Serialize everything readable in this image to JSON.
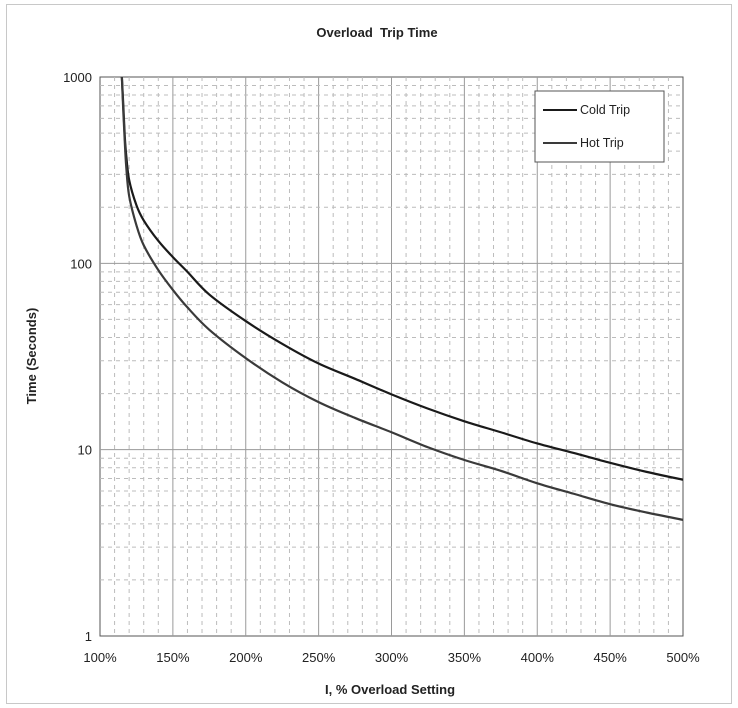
{
  "chart_data": {
    "type": "line",
    "title": "Overload  Trip Time",
    "xlabel": "I, % Overload Setting",
    "ylabel": "Time (Seconds)",
    "xlim": [
      100,
      500
    ],
    "ylim": [
      1,
      1000
    ],
    "y_scale": "log",
    "grid": true,
    "legend_position": "top-right",
    "x_ticks": [
      {
        "value": 100,
        "label": "100%"
      },
      {
        "value": 150,
        "label": "150%"
      },
      {
        "value": 200,
        "label": "200%"
      },
      {
        "value": 250,
        "label": "250%"
      },
      {
        "value": 300,
        "label": "300%"
      },
      {
        "value": 350,
        "label": "350%"
      },
      {
        "value": 400,
        "label": "400%"
      },
      {
        "value": 450,
        "label": "450%"
      },
      {
        "value": 500,
        "label": "500%"
      }
    ],
    "y_ticks": [
      {
        "value": 1,
        "label": "1"
      },
      {
        "value": 10,
        "label": "10"
      },
      {
        "value": 100,
        "label": "100"
      },
      {
        "value": 1000,
        "label": "1000"
      }
    ],
    "series": [
      {
        "name": "Cold Trip",
        "color": "#1a1a1a",
        "x": [
          115,
          116,
          117,
          118,
          120,
          125,
          130,
          140,
          150,
          160,
          175,
          200,
          225,
          250,
          275,
          300,
          325,
          350,
          375,
          400,
          425,
          450,
          475,
          500
        ],
        "y": [
          1000,
          700,
          480,
          380,
          280,
          205,
          170,
          132,
          108,
          90,
          68,
          49,
          37,
          29,
          24,
          19.8,
          16.6,
          14.2,
          12.4,
          10.8,
          9.6,
          8.5,
          7.6,
          6.9
        ]
      },
      {
        "name": "Hot Trip",
        "color": "#3a3a3a",
        "x": [
          115,
          116,
          117,
          118,
          120,
          125,
          130,
          140,
          150,
          160,
          175,
          200,
          225,
          250,
          275,
          300,
          325,
          350,
          375,
          400,
          425,
          450,
          475,
          500
        ],
        "y": [
          1000,
          650,
          450,
          330,
          230,
          160,
          125,
          92,
          72,
          58,
          44,
          31,
          23,
          18,
          14.8,
          12.4,
          10.3,
          8.8,
          7.7,
          6.6,
          5.8,
          5.1,
          4.6,
          4.2
        ]
      }
    ]
  }
}
